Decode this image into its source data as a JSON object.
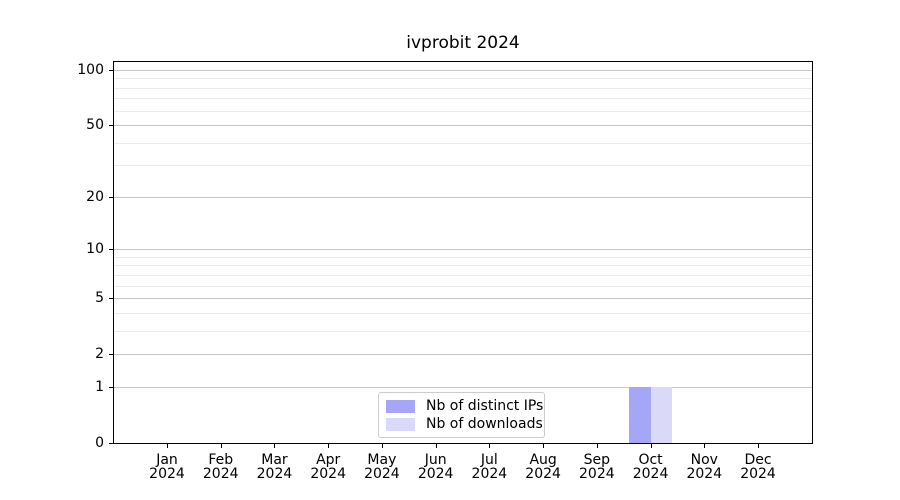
{
  "chart_data": {
    "type": "bar",
    "title": "ivprobit 2024",
    "x_tick_labels": [
      [
        "Jan",
        "2024"
      ],
      [
        "Feb",
        "2024"
      ],
      [
        "Mar",
        "2024"
      ],
      [
        "Apr",
        "2024"
      ],
      [
        "May",
        "2024"
      ],
      [
        "Jun",
        "2024"
      ],
      [
        "Jul",
        "2024"
      ],
      [
        "Aug",
        "2024"
      ],
      [
        "Sep",
        "2024"
      ],
      [
        "Oct",
        "2024"
      ],
      [
        "Nov",
        "2024"
      ],
      [
        "Dec",
        "2024"
      ]
    ],
    "series": [
      {
        "name": "Nb of distinct IPs",
        "color": "#a6a6f8",
        "values": [
          0,
          0,
          0,
          0,
          0,
          0,
          0,
          0,
          0,
          1,
          0,
          0
        ]
      },
      {
        "name": "Nb of downloads",
        "color": "#dadaf8",
        "values": [
          0,
          0,
          0,
          0,
          0,
          0,
          0,
          0,
          0,
          1,
          0,
          0
        ]
      }
    ],
    "y_scale": "log1p",
    "y_major_ticks": [
      0,
      1,
      2,
      5,
      10,
      20,
      50,
      100
    ],
    "y_minor_gridlines": [
      3,
      4,
      6,
      7,
      8,
      9,
      30,
      40,
      60,
      70,
      80,
      90
    ],
    "ylim": [
      0,
      110.5
    ],
    "legend_position": "bottom-center",
    "colors": {
      "major_grid": "#c8c8c8",
      "minor_grid": "#ebebeb",
      "axis": "#000000",
      "legend_border": "#cccccc",
      "background": "#ffffff"
    }
  }
}
